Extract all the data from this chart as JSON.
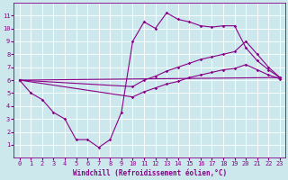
{
  "background_color": "#cde8ec",
  "line_color": "#880088",
  "grid_color": "#ffffff",
  "xlim": [
    -0.5,
    23.5
  ],
  "ylim": [
    0,
    12
  ],
  "xticks": [
    0,
    1,
    2,
    3,
    4,
    5,
    6,
    7,
    8,
    9,
    10,
    11,
    12,
    13,
    14,
    15,
    16,
    17,
    18,
    19,
    20,
    21,
    22,
    23
  ],
  "yticks": [
    1,
    2,
    3,
    4,
    5,
    6,
    7,
    8,
    9,
    10,
    11
  ],
  "xlabel": "Windchill (Refroidissement éolien,°C)",
  "line1_x": [
    0,
    1,
    2,
    3,
    4,
    5,
    6,
    7,
    8,
    9,
    10,
    11,
    12,
    13,
    14,
    15,
    16,
    17,
    18,
    19,
    20,
    21,
    22,
    23
  ],
  "line1_y": [
    6.0,
    5.0,
    4.5,
    3.5,
    3.0,
    1.4,
    1.4,
    0.8,
    1.4,
    3.5,
    9.0,
    10.5,
    10.0,
    11.2,
    10.7,
    10.5,
    10.2,
    10.1,
    10.2,
    10.2,
    8.5,
    7.5,
    6.8,
    6.2
  ],
  "line2_x": [
    0,
    23
  ],
  "line2_y": [
    6.0,
    6.2
  ],
  "line3_x": [
    0,
    10,
    11,
    12,
    13,
    14,
    15,
    16,
    17,
    18,
    19,
    20,
    21,
    22,
    23
  ],
  "line3_y": [
    6.0,
    5.5,
    6.0,
    6.3,
    6.7,
    7.0,
    7.3,
    7.6,
    7.8,
    8.0,
    8.2,
    9.0,
    8.0,
    7.0,
    6.2
  ],
  "line4_x": [
    0,
    10,
    11,
    12,
    13,
    14,
    15,
    16,
    17,
    18,
    19,
    20,
    21,
    22,
    23
  ],
  "line4_y": [
    6.0,
    4.7,
    5.1,
    5.4,
    5.7,
    5.9,
    6.2,
    6.4,
    6.6,
    6.8,
    6.9,
    7.2,
    6.8,
    6.4,
    6.1
  ],
  "marker": "D",
  "marker_size": 1.8,
  "linewidth": 0.8,
  "tick_fontsize": 5.0,
  "xlabel_fontsize": 5.5
}
